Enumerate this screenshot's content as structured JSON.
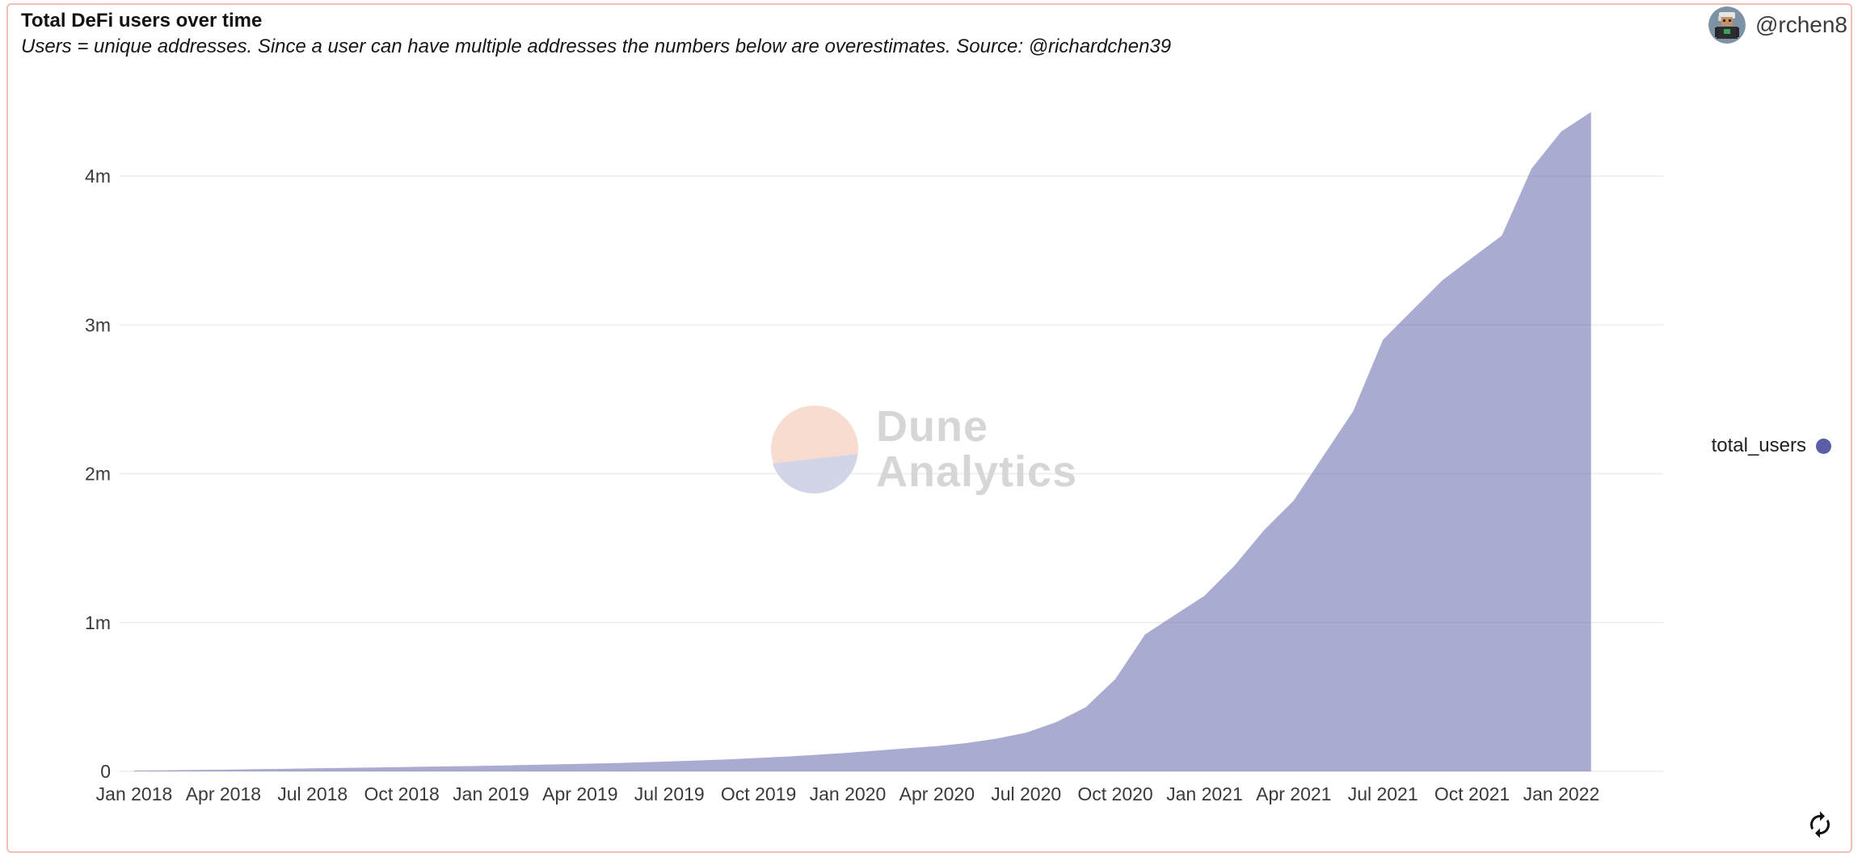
{
  "header": {
    "title": "Total DeFi users over time",
    "subtitle": "Users = unique addresses. Since a user can have multiple addresses the numbers below are overestimates. Source: @richardchen39",
    "username": "@rchen8"
  },
  "watermark": {
    "line1": "Dune",
    "line2": "Analytics"
  },
  "legend": {
    "label": "total_users",
    "dot_color": "#5b5ea6"
  },
  "colors": {
    "card_border": "#f0c0b4",
    "area_fill": "rgba(99,102,170,0.55)",
    "legend_dot": "#5b5ea6",
    "gridline": "#ececec",
    "axis_text": "#3a3a3a",
    "watermark_text": "#d6d6d6",
    "watermark_peach": "#f8dcd0",
    "watermark_lavender": "#d2d5e7",
    "refresh_icon": "#111111"
  },
  "chart_data": {
    "type": "area",
    "title": "Total DeFi users over time",
    "series": [
      {
        "name": "total_users",
        "color": "#5b5ea6"
      }
    ],
    "x_monthly": [
      "2018-01",
      "2018-02",
      "2018-03",
      "2018-04",
      "2018-05",
      "2018-06",
      "2018-07",
      "2018-08",
      "2018-09",
      "2018-10",
      "2018-11",
      "2018-12",
      "2019-01",
      "2019-02",
      "2019-03",
      "2019-04",
      "2019-05",
      "2019-06",
      "2019-07",
      "2019-08",
      "2019-09",
      "2019-10",
      "2019-11",
      "2019-12",
      "2020-01",
      "2020-02",
      "2020-03",
      "2020-04",
      "2020-05",
      "2020-06",
      "2020-07",
      "2020-08",
      "2020-09",
      "2020-10",
      "2020-11",
      "2020-12",
      "2021-01",
      "2021-02",
      "2021-03",
      "2021-04",
      "2021-05",
      "2021-06",
      "2021-07",
      "2021-08",
      "2021-09",
      "2021-10",
      "2021-11",
      "2021-12",
      "2022-01",
      "2022-02"
    ],
    "values_millions": [
      0.005,
      0.007,
      0.009,
      0.011,
      0.014,
      0.017,
      0.02,
      0.023,
      0.026,
      0.029,
      0.032,
      0.035,
      0.038,
      0.042,
      0.046,
      0.05,
      0.055,
      0.06,
      0.066,
      0.073,
      0.081,
      0.09,
      0.1,
      0.112,
      0.125,
      0.14,
      0.155,
      0.17,
      0.19,
      0.22,
      0.26,
      0.33,
      0.43,
      0.62,
      0.92,
      1.05,
      1.18,
      1.38,
      1.62,
      1.82,
      2.12,
      2.42,
      2.9,
      3.1,
      3.3,
      3.45,
      3.6,
      4.05,
      4.3,
      4.43
    ],
    "x_tick_labels": [
      "Jan 2018",
      "Apr 2018",
      "Jul 2018",
      "Oct 2018",
      "Jan 2019",
      "Apr 2019",
      "Jul 2019",
      "Oct 2019",
      "Jan 2020",
      "Apr 2020",
      "Jul 2020",
      "Oct 2020",
      "Jan 2021",
      "Apr 2021",
      "Jul 2021",
      "Oct 2021",
      "Jan 2022"
    ],
    "x_tick_every_months": 3,
    "y_tick_labels": [
      "0",
      "1m",
      "2m",
      "3m",
      "4m"
    ],
    "y_tick_values": [
      0,
      1,
      2,
      3,
      4
    ],
    "ylim": [
      0,
      4.5
    ],
    "grid": "horizontal",
    "legend_position": "right"
  }
}
